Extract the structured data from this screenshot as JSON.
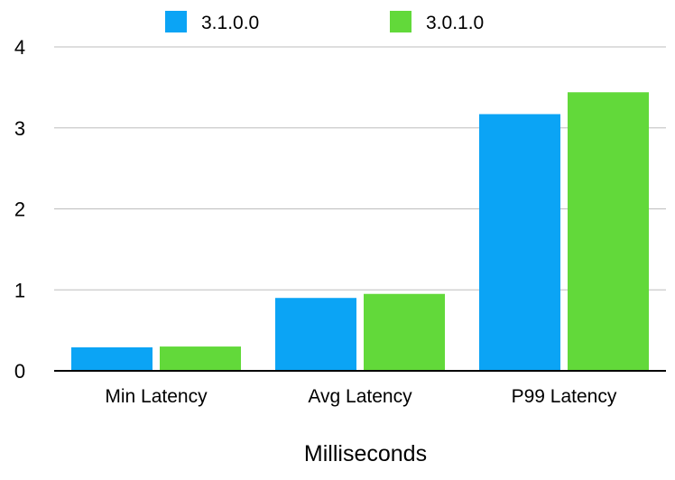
{
  "chart_data": {
    "type": "bar",
    "categories": [
      "Min Latency",
      "Avg Latency",
      "P99 Latency"
    ],
    "series": [
      {
        "name": "3.1.0.0",
        "color": "#0ba4f5",
        "values": [
          0.29,
          0.9,
          3.17
        ]
      },
      {
        "name": "3.0.1.0",
        "color": "#62d93a",
        "values": [
          0.3,
          0.95,
          3.44
        ]
      }
    ],
    "title": "",
    "xlabel": "Milliseconds",
    "ylabel": "",
    "ylim": [
      0,
      4
    ],
    "yticks": [
      "0",
      "1",
      "2",
      "3",
      "4"
    ],
    "grid": true,
    "legend_position": "top"
  }
}
